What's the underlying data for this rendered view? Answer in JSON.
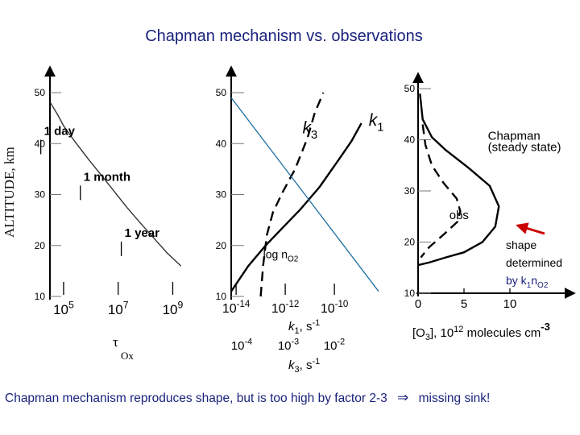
{
  "title": "Chapman mechanism vs. observations",
  "y_axis_label": "ALTITUDE, km",
  "caption": {
    "text": "Chapman mechanism reproduces shape, but is too high by factor 2-3",
    "arrow_symbol": "⇒",
    "conclusion": "missing sink!"
  },
  "chart_data": [
    {
      "type": "line",
      "panel": "lifetime",
      "ylabel": "ALTITUDE, km",
      "ylim": [
        10,
        50
      ],
      "yticks": [
        "10",
        "20",
        "30",
        "40",
        "50"
      ],
      "xscale": "log",
      "xlim_log10": [
        4.5,
        9.4
      ],
      "xticks": [
        {
          "base": "10",
          "exp": "5"
        },
        {
          "base": "10",
          "exp": "7"
        },
        {
          "base": "10",
          "exp": "9"
        }
      ],
      "xlabel": {
        "symbol": "τ",
        "subscript": "Ox"
      },
      "series": [
        {
          "name": "τOx",
          "log10_x": [
            4.52,
            4.8,
            5.0,
            5.4,
            5.9,
            6.35,
            6.8,
            7.3,
            7.8,
            8.3,
            8.8,
            9.3
          ],
          "y": [
            48,
            45.5,
            43.5,
            40.5,
            37,
            34,
            31,
            27.6,
            24.5,
            21.5,
            18.5,
            16
          ]
        }
      ],
      "annotations": [
        {
          "text": "1 day",
          "log10_x": 5.05,
          "y": 39.5
        },
        {
          "text": "1 month",
          "log10_x": 6.5,
          "y": 30.5
        },
        {
          "text": "1 year",
          "log10_x": 8.0,
          "y": 19.5
        }
      ]
    },
    {
      "type": "line",
      "panel": "rate-constants",
      "ylim": [
        10,
        50
      ],
      "yticks": [
        "10",
        "20",
        "30",
        "40",
        "50"
      ],
      "xscale": "log",
      "xlim_log10": [
        -14.2,
        -8.2
      ],
      "xticks": [
        {
          "base": "10",
          "exp": "-14"
        },
        {
          "base": "10",
          "exp": "-12"
        },
        {
          "base": "10",
          "exp": "-10"
        }
      ],
      "xlabel": {
        "symbol": "k",
        "subscript": "1",
        "unit": ", s",
        "unit_exp": "-1"
      },
      "xticks2": [
        {
          "base": "10",
          "exp": "-4"
        },
        {
          "base": "10",
          "exp": "-3"
        },
        {
          "base": "10",
          "exp": "-2"
        }
      ],
      "xlabel2": {
        "symbol": "k",
        "subscript": "3",
        "unit": ", s",
        "unit_exp": "-1"
      },
      "series": [
        {
          "name": "k1",
          "log10_x": [
            -14.2,
            -13.5,
            -12.8,
            -12.1,
            -11.4,
            -10.6,
            -9.8,
            -9.3,
            -8.9
          ],
          "y": [
            11,
            16,
            20,
            23.5,
            27,
            31.5,
            37,
            40.5,
            44
          ],
          "color": "#000000"
        },
        {
          "name": "k3",
          "style": "dashed",
          "log10_x": [
            -13.0,
            -12.9,
            -12.75,
            -12.5,
            -12.1,
            -11.6,
            -11.1,
            -10.8,
            -10.45
          ],
          "y": [
            10,
            16,
            22,
            26.5,
            30.5,
            35,
            41,
            46,
            50
          ],
          "color": "#000000"
        },
        {
          "name": "log nO2",
          "log10_x": [
            -14.2,
            -8.2
          ],
          "y": [
            49,
            11
          ],
          "color": "#1f6fa3"
        }
      ],
      "annotations": [
        {
          "symbol": "k",
          "subscript": "3",
          "log10_x": -11.3,
          "y": 42
        },
        {
          "symbol": "k",
          "subscript": "1",
          "log10_x": -8.6,
          "y": 43.5
        },
        {
          "prefix": "log n",
          "subscript": "O2",
          "log10_x": -12.9,
          "y": 17.5
        }
      ]
    },
    {
      "type": "line",
      "panel": "ozone-profile",
      "ylim": [
        10,
        50
      ],
      "yticks": [
        "10",
        "20",
        "30",
        "40",
        "50"
      ],
      "xlim": [
        0,
        15
      ],
      "xticks": [
        "0",
        "5",
        "10"
      ],
      "xlabel": {
        "prefix": "[O",
        "subscript": "3",
        "middle": "], 10",
        "exp1": "12",
        "suffix": " molecules cm",
        "exp2": "-3"
      },
      "series": [
        {
          "name": "Chapman (steady state)",
          "x": [
            0.2,
            0.5,
            1.5,
            3,
            5.5,
            7.8,
            8.8,
            8.4,
            7,
            5,
            3,
            1.2,
            0
          ],
          "y": [
            49,
            44,
            40.5,
            38,
            34.5,
            31,
            27,
            23,
            20,
            18,
            17,
            16,
            15.5
          ]
        },
        {
          "name": "obs",
          "style": "dashed",
          "x": [
            0.5,
            0.8,
            1.5,
            2.8,
            4.2,
            4.6,
            4.3,
            2.8,
            1.2,
            0.3
          ],
          "y": [
            43,
            39,
            35,
            31.5,
            28.5,
            26,
            24,
            21.5,
            19,
            17
          ]
        }
      ],
      "annotations": [
        {
          "text": "Chapman",
          "x": 7.6,
          "y": 40
        },
        {
          "text": "(steady state)",
          "x": 7.6,
          "y": 37.8
        },
        {
          "text": "obs",
          "x": 3.4,
          "y": 24.5
        }
      ],
      "callout": {
        "lines": [
          "shape",
          "determined"
        ],
        "by_prefix": "by k",
        "by_sub1": "1",
        "by_mid": "n",
        "by_sub2": "O2",
        "arrow_color": "#cc0000"
      }
    }
  ]
}
